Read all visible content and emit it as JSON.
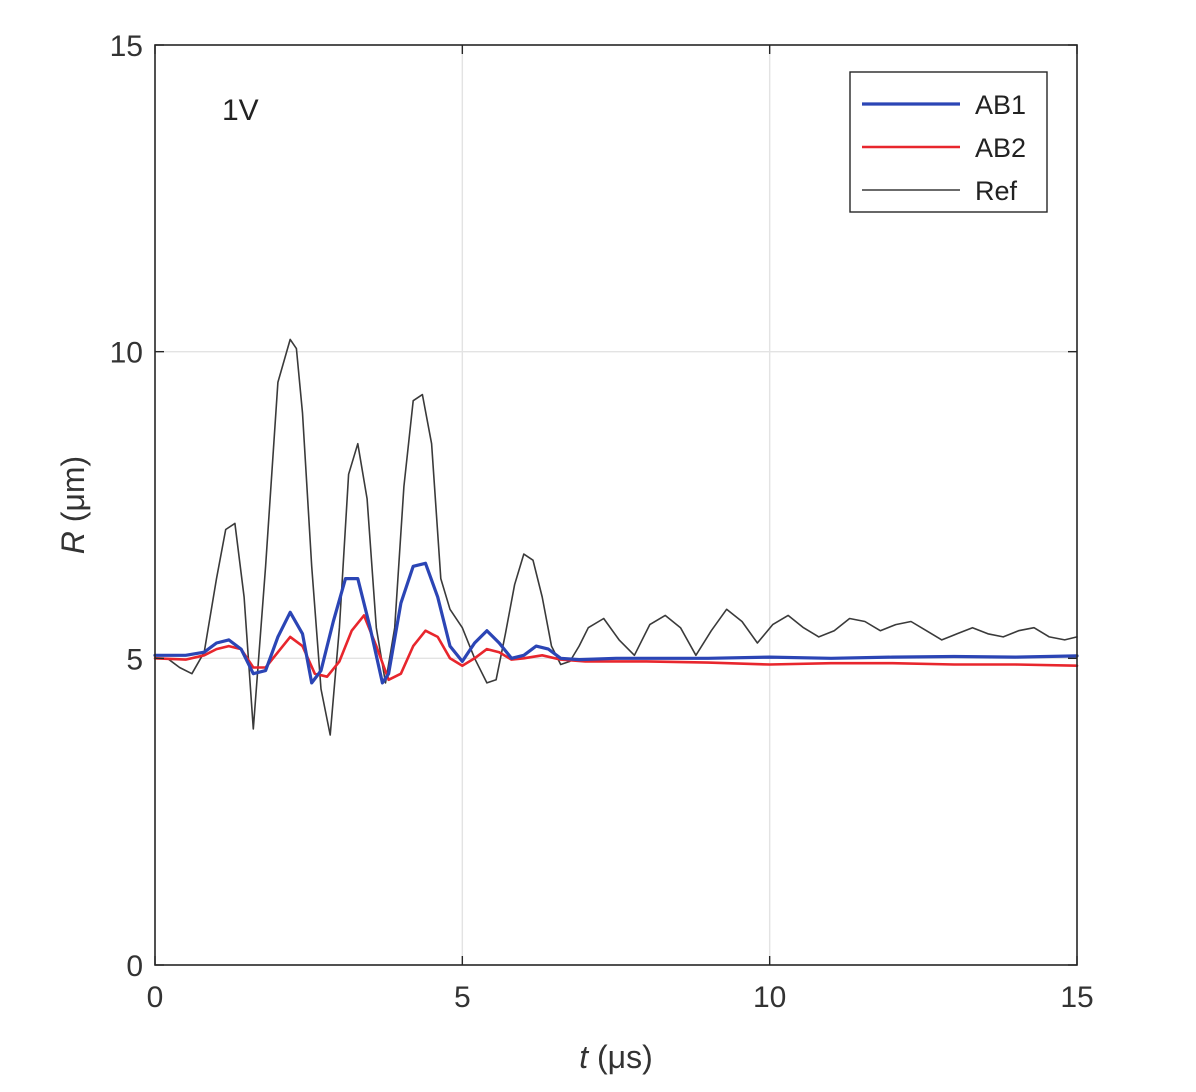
{
  "chart_data": {
    "type": "line",
    "title": "",
    "annotation": "1V",
    "xlabel": {
      "var": "t",
      "unit": " (μs)"
    },
    "ylabel": {
      "var": "R",
      "unit": " (μm)"
    },
    "xlim": [
      0,
      15
    ],
    "ylim": [
      0,
      15
    ],
    "xticks": [
      0,
      5,
      10,
      15
    ],
    "yticks": [
      0,
      5,
      10,
      15
    ],
    "grid": true,
    "legend_position": "top-right",
    "series": [
      {
        "name": "AB1",
        "color": "#2b45b5",
        "x": [
          0,
          0.5,
          0.8,
          1.0,
          1.2,
          1.4,
          1.6,
          1.8,
          2.0,
          2.2,
          2.4,
          2.55,
          2.7,
          2.9,
          3.1,
          3.3,
          3.5,
          3.7,
          3.8,
          4.0,
          4.2,
          4.4,
          4.6,
          4.8,
          5.0,
          5.2,
          5.4,
          5.6,
          5.8,
          6.0,
          6.2,
          6.4,
          6.6,
          6.9,
          7.5,
          8,
          9,
          10,
          11,
          12,
          13,
          14,
          15
        ],
        "y": [
          5.05,
          5.05,
          5.1,
          5.25,
          5.3,
          5.15,
          4.75,
          4.8,
          5.35,
          5.75,
          5.4,
          4.6,
          4.8,
          5.6,
          6.3,
          6.3,
          5.5,
          4.6,
          4.75,
          5.9,
          6.5,
          6.55,
          6.0,
          5.2,
          4.95,
          5.25,
          5.45,
          5.25,
          5.0,
          5.05,
          5.2,
          5.15,
          5.0,
          4.98,
          5.0,
          5.0,
          5.0,
          5.02,
          5.0,
          5.02,
          5.03,
          5.02,
          5.04
        ]
      },
      {
        "name": "AB2",
        "color": "#e8262d",
        "x": [
          0,
          0.5,
          0.8,
          1.0,
          1.2,
          1.4,
          1.6,
          1.8,
          2.0,
          2.2,
          2.4,
          2.6,
          2.8,
          3.0,
          3.2,
          3.4,
          3.6,
          3.8,
          4.0,
          4.2,
          4.4,
          4.6,
          4.8,
          5.0,
          5.2,
          5.4,
          5.6,
          5.8,
          6.0,
          6.3,
          6.6,
          7.0,
          8,
          9,
          10,
          11,
          12,
          13,
          14,
          15
        ],
        "y": [
          5.0,
          4.98,
          5.05,
          5.15,
          5.2,
          5.15,
          4.85,
          4.85,
          5.1,
          5.35,
          5.2,
          4.75,
          4.7,
          4.95,
          5.45,
          5.7,
          5.2,
          4.65,
          4.75,
          5.2,
          5.45,
          5.35,
          5.0,
          4.88,
          5.0,
          5.15,
          5.1,
          4.98,
          5.0,
          5.05,
          4.98,
          4.95,
          4.95,
          4.93,
          4.9,
          4.92,
          4.92,
          4.9,
          4.9,
          4.88
        ]
      },
      {
        "name": "Ref",
        "color": "#3a3a3a",
        "x": [
          0,
          0.2,
          0.4,
          0.6,
          0.8,
          1.0,
          1.15,
          1.3,
          1.45,
          1.6,
          1.8,
          2.0,
          2.2,
          2.3,
          2.4,
          2.55,
          2.7,
          2.85,
          3.0,
          3.15,
          3.3,
          3.45,
          3.6,
          3.75,
          3.9,
          4.05,
          4.2,
          4.35,
          4.5,
          4.65,
          4.8,
          5.0,
          5.2,
          5.4,
          5.55,
          5.7,
          5.85,
          6.0,
          6.15,
          6.3,
          6.45,
          6.6,
          6.75,
          6.9,
          7.05,
          7.3,
          7.55,
          7.8,
          8.05,
          8.3,
          8.55,
          8.8,
          9.05,
          9.3,
          9.55,
          9.8,
          10.05,
          10.3,
          10.55,
          10.8,
          11.05,
          11.3,
          11.55,
          11.8,
          12.05,
          12.3,
          12.55,
          12.8,
          13.05,
          13.3,
          13.55,
          13.8,
          14.05,
          14.3,
          14.55,
          14.8,
          15
        ],
        "y": [
          5.0,
          5.0,
          4.85,
          4.75,
          5.1,
          6.3,
          7.1,
          7.2,
          6.0,
          3.85,
          6.5,
          9.5,
          10.2,
          10.05,
          9.0,
          6.5,
          4.5,
          3.75,
          5.5,
          8.0,
          8.5,
          7.6,
          5.5,
          4.6,
          5.5,
          7.8,
          9.2,
          9.3,
          8.5,
          6.3,
          5.8,
          5.5,
          5.0,
          4.6,
          4.65,
          5.4,
          6.2,
          6.7,
          6.6,
          6.0,
          5.2,
          4.9,
          4.95,
          5.2,
          5.5,
          5.65,
          5.3,
          5.05,
          5.55,
          5.7,
          5.5,
          5.05,
          5.45,
          5.8,
          5.6,
          5.25,
          5.55,
          5.7,
          5.5,
          5.35,
          5.45,
          5.65,
          5.6,
          5.45,
          5.55,
          5.6,
          5.45,
          5.3,
          5.4,
          5.5,
          5.4,
          5.35,
          5.45,
          5.5,
          5.35,
          5.3,
          5.35
        ]
      }
    ]
  }
}
